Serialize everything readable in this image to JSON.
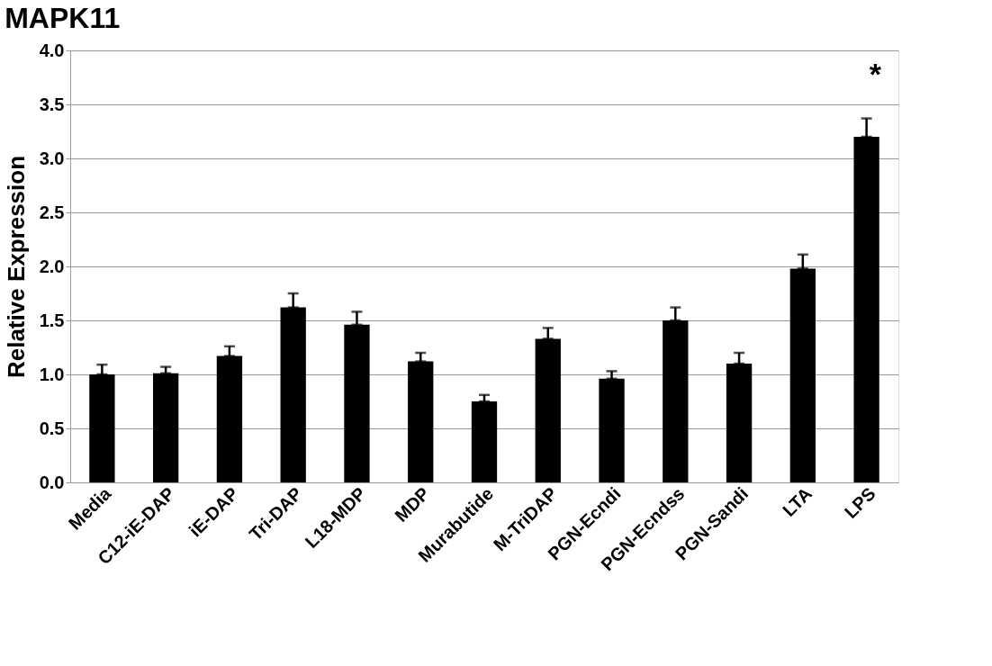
{
  "chart_data": {
    "type": "bar",
    "title": "MAPK11",
    "ylabel": "Relative Expression",
    "categories": [
      "Media",
      "C12-iE-DAP",
      "iE-DAP",
      "Tri-DAP",
      "L18-MDP",
      "MDP",
      "Murabutide",
      "M-TriDAP",
      "PGN-Ecndi",
      "PGN-Ecndss",
      "PGN-Sandi",
      "LTA",
      "LPS"
    ],
    "values": [
      1.0,
      1.01,
      1.17,
      1.62,
      1.46,
      1.12,
      0.75,
      1.33,
      0.96,
      1.5,
      1.1,
      1.98,
      3.2
    ],
    "errors": [
      [
        1.0,
        1.09
      ],
      [
        1.01,
        1.07
      ],
      [
        1.17,
        1.26
      ],
      [
        1.62,
        1.75
      ],
      [
        1.46,
        1.58
      ],
      [
        1.12,
        1.2
      ],
      [
        0.75,
        0.81
      ],
      [
        1.33,
        1.43
      ],
      [
        0.96,
        1.03
      ],
      [
        1.5,
        1.62
      ],
      [
        1.1,
        1.2
      ],
      [
        1.98,
        2.11
      ],
      [
        3.2,
        3.37
      ]
    ],
    "color": "#000000",
    "ylim": [
      0,
      4
    ],
    "yticks": [
      {
        "value": 0,
        "label": "0.0"
      },
      {
        "value": 0.5,
        "label": "0.5"
      },
      {
        "value": 1,
        "label": "1.0"
      },
      {
        "value": 1.5,
        "label": "1.5"
      },
      {
        "value": 2,
        "label": "2.0"
      },
      {
        "value": 2.5,
        "label": "2.5"
      },
      {
        "value": 3,
        "label": "3.0"
      },
      {
        "value": 3.5,
        "label": "3.5"
      },
      {
        "value": 4,
        "label": "4.0"
      }
    ],
    "grid": "y",
    "annotations": [
      "*"
    ]
  }
}
